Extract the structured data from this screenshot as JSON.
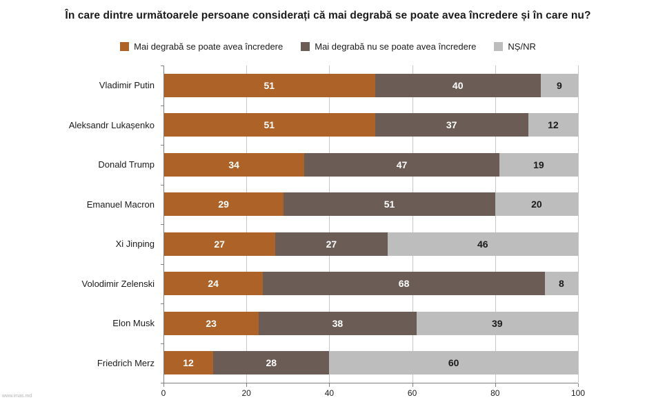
{
  "title": "În care dintre următoarele persoane considerați că mai degrabă se poate avea încredere și în care nu?",
  "watermark": "www.imas.md",
  "chart_data": {
    "type": "bar",
    "orientation": "horizontal",
    "stacked": true,
    "title": "În care dintre următoarele persoane considerați că mai degrabă se poate avea încredere și în care nu?",
    "categories": [
      "Vladimir Putin",
      "Aleksandr Lukașenko",
      "Donald Trump",
      "Emanuel Macron",
      "Xi Jinping",
      "Volodimir Zelenski",
      "Elon Musk",
      "Friedrich Merz"
    ],
    "series": [
      {
        "name": "Mai degrabă se poate avea încredere",
        "color": "#AD6328",
        "value_label_color": "#FFFFFF",
        "values": [
          51,
          51,
          34,
          29,
          27,
          24,
          23,
          12
        ]
      },
      {
        "name": "Mai degrabă nu se poate avea încredere",
        "color": "#6B5D55",
        "value_label_color": "#FFFFFF",
        "values": [
          40,
          37,
          47,
          51,
          27,
          68,
          38,
          28
        ]
      },
      {
        "name": "NȘ/NR",
        "color": "#BDBDBD",
        "value_label_color": "#1A1A1A",
        "values": [
          9,
          12,
          19,
          20,
          46,
          8,
          39,
          60
        ]
      }
    ],
    "xlim": [
      0,
      100
    ],
    "x_ticks": [
      0,
      20,
      40,
      60,
      80,
      100
    ],
    "grid": "vertical-gridlines",
    "legend_position": "top",
    "colors": {
      "gridline": "#C6C6C6",
      "axis": "#7F7F7F",
      "text": "#1A1A1A"
    }
  }
}
